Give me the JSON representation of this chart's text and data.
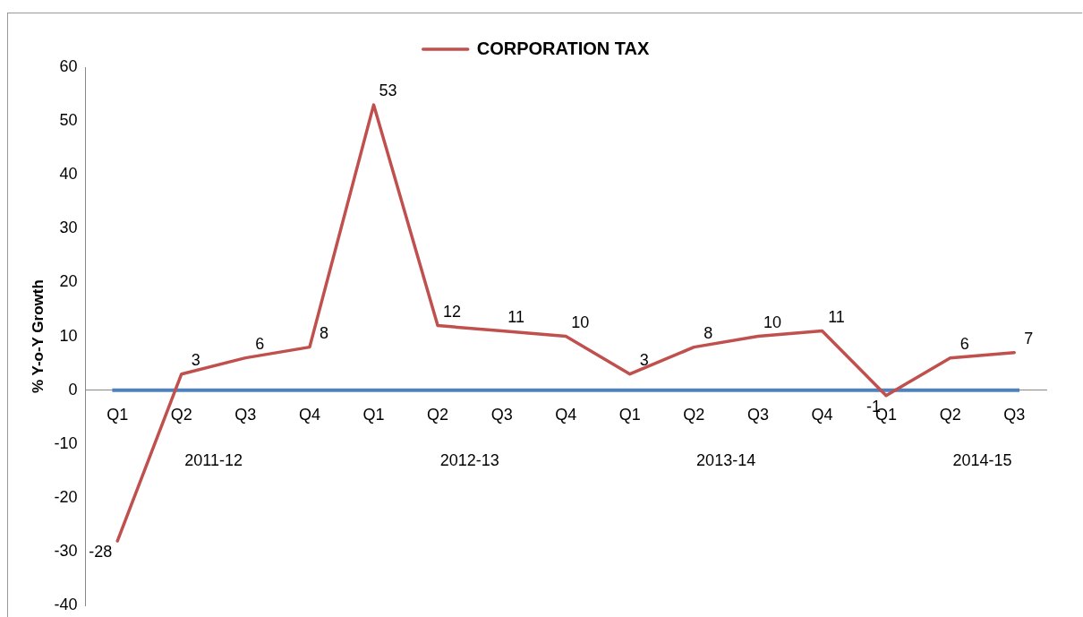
{
  "chart_data": {
    "type": "line",
    "categories": [
      "Q1",
      "Q2",
      "Q3",
      "Q4",
      "Q1",
      "Q2",
      "Q3",
      "Q4",
      "Q1",
      "Q2",
      "Q3",
      "Q4",
      "Q1",
      "Q2",
      "Q3"
    ],
    "series": [
      {
        "name": "CORPORATION TAX",
        "color": "#c0504d",
        "values": [
          -28,
          3,
          6,
          8,
          53,
          12,
          11,
          10,
          3,
          8,
          10,
          11,
          -1,
          6,
          7
        ]
      }
    ],
    "ylabel": "% Y-o-Y Growth",
    "ylim": [
      -40,
      60
    ],
    "yticks": [
      -40,
      -30,
      -20,
      -10,
      0,
      10,
      20,
      30,
      40,
      50,
      60
    ],
    "annotations": [
      "2011-12",
      "2012-13",
      "2013-14",
      "2014-15"
    ],
    "ref_lines": [
      {
        "axis": "y",
        "value": 0,
        "color": "#4f81bd"
      }
    ],
    "data_labels": true,
    "legend": "top",
    "grid": false,
    "marker": "none",
    "line_style": "solid"
  }
}
